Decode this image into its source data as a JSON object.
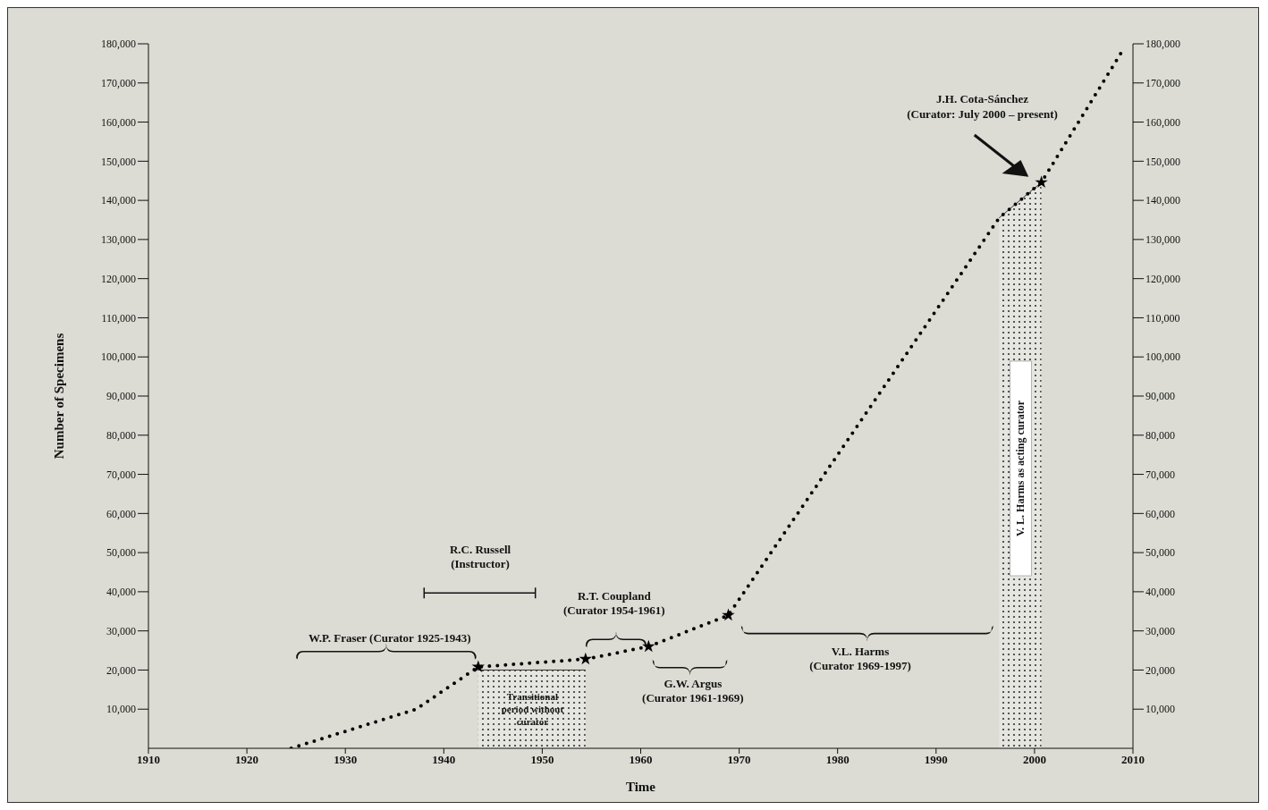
{
  "chart_data": {
    "type": "line",
    "xlabel": "Time",
    "ylabel": "Number of Specimens",
    "xlim": [
      1910,
      2010
    ],
    "xticks": [
      1910,
      1920,
      1930,
      1940,
      1950,
      1960,
      1970,
      1980,
      1990,
      2000,
      2010
    ],
    "ylim": [
      0,
      180000
    ],
    "yticks": [
      {
        "value": 10000,
        "label": "10,000"
      },
      {
        "value": 20000,
        "label": "20,000"
      },
      {
        "value": 30000,
        "label": "30,000"
      },
      {
        "value": 40000,
        "label": "40,000"
      },
      {
        "value": 50000,
        "label": "50,000"
      },
      {
        "value": 60000,
        "label": "60,000"
      },
      {
        "value": 70000,
        "label": "70,000"
      },
      {
        "value": 80000,
        "label": "80,000"
      },
      {
        "value": 90000,
        "label": "90,000"
      },
      {
        "value": 100000,
        "label": "100,000"
      },
      {
        "value": 110000,
        "label": "110,000"
      },
      {
        "value": 120000,
        "label": "120,000"
      },
      {
        "value": 130000,
        "label": "130,000"
      },
      {
        "value": 140000,
        "label": "140,000"
      },
      {
        "value": 150000,
        "label": "150,000"
      },
      {
        "value": 160000,
        "label": "160,000"
      },
      {
        "value": 170000,
        "label": "170,000"
      },
      {
        "value": 180000,
        "label": "180,000"
      }
    ],
    "y2lim": [
      0,
      180000
    ],
    "y2ticks": [
      {
        "value": 10000,
        "label": "10,000"
      },
      {
        "value": 20000,
        "label": "20,000"
      },
      {
        "value": 30000,
        "label": "30,000"
      },
      {
        "value": 40000,
        "label": "40,000"
      },
      {
        "value": 50000,
        "label": "50,000"
      },
      {
        "value": 60000,
        "label": "60,000"
      },
      {
        "value": 70000,
        "label": "70,000"
      },
      {
        "value": 80000,
        "label": "80,000"
      },
      {
        "value": 90000,
        "label": "90,000"
      },
      {
        "value": 100000,
        "label": "100,000"
      },
      {
        "value": 110000,
        "label": "110,000"
      },
      {
        "value": 120000,
        "label": "120,000"
      },
      {
        "value": 130000,
        "label": "130,000"
      },
      {
        "value": 140000,
        "label": "140,000"
      },
      {
        "value": 150000,
        "label": "150,000"
      },
      {
        "value": 160000,
        "label": "160,000"
      },
      {
        "value": 170000,
        "label": "170,000"
      },
      {
        "value": 180000,
        "label": "180,000"
      }
    ],
    "series": [
      {
        "type": "area",
        "color": "#333333",
        "x": [
          1943.5,
          1954.4
        ],
        "values": [
          20000,
          20000
        ]
      },
      {
        "type": "area",
        "color": "#333333",
        "x": [
          1996.4,
          2000.7
        ],
        "values": [
          135500,
          144600
        ]
      },
      {
        "color": "#000000",
        "line_style": "dotted",
        "marker": "none",
        "x": [
          1924.5,
          1937.2,
          1943.5,
          1954.4,
          1960.8,
          1968.9,
          1996.4,
          2000.7,
          2008.8
        ],
        "values": [
          0,
          10000,
          20800,
          22800,
          26000,
          34000,
          135500,
          144600,
          177700
        ]
      },
      {
        "type": "scatter",
        "color": "#000000",
        "marker": "star",
        "x": [
          1943.5,
          1954.4,
          1960.8,
          1968.9,
          2000.7
        ],
        "values": [
          20800,
          22800,
          26000,
          34000,
          144600
        ]
      }
    ],
    "annotations": [
      "W.P. Fraser (Curator 1925-1943)",
      "R.C. Russell\n(Instructor)",
      "R.T. Coupland\n(Curator 1954-1961)",
      "Transitional\nperiod without\ncurator",
      "G.W. Argus\n(Curator 1961-1969)",
      "V.L. Harms\n(Curator 1969-1997)",
      "J.H. Cota-Sánchez\n(Curator: July 2000 – present)",
      "V. L. Harms as acting curator"
    ]
  }
}
